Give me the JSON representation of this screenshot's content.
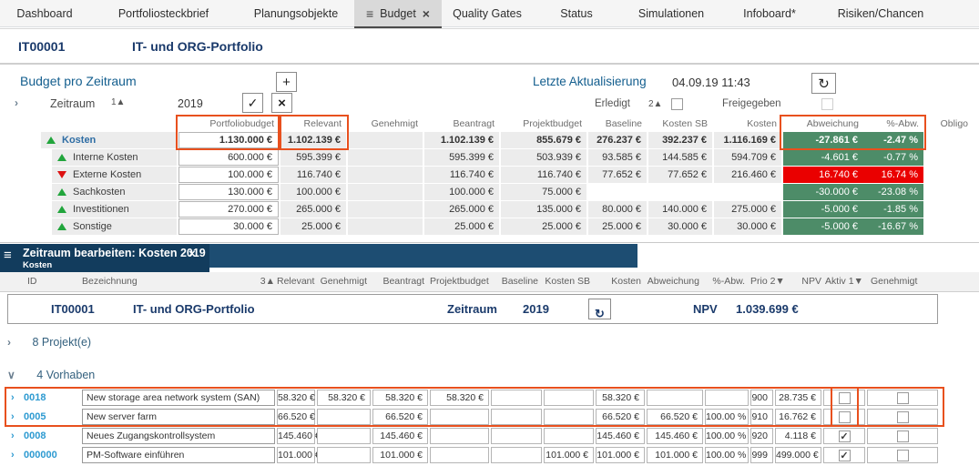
{
  "icons": {
    "menu": "≡",
    "close": "×",
    "add": "+",
    "confirm": "✓",
    "cancel": "×",
    "refresh": "↻",
    "chevron_right": "›",
    "chevron_down": "∨",
    "check": "✓"
  },
  "colors": {
    "accent_blue": "#135e8e",
    "navy": "#1a3a6b",
    "green_cell": "#4d8c68",
    "red_cell": "#ea0000",
    "annotation_red": "#e8501e",
    "link_blue": "#2d9ad1",
    "panel_dark": "#123c5d",
    "panel_mid": "#1d4d72",
    "trend_up_green": "#21a53c",
    "trend_down_red": "#dd1111"
  },
  "tabs": [
    {
      "label": "Dashboard",
      "active": false
    },
    {
      "label": "Portfoliosteckbrief",
      "active": false
    },
    {
      "label": "Planungsobjekte",
      "active": false
    },
    {
      "label": "Budget",
      "active": true
    },
    {
      "label": "Quality Gates",
      "active": false
    },
    {
      "label": "Status",
      "active": false
    },
    {
      "label": "Simulationen",
      "active": false
    },
    {
      "label": "Infoboard*",
      "active": false
    },
    {
      "label": "Risiken/Chancen",
      "active": false
    }
  ],
  "portfolio_header": {
    "id": "IT00001",
    "name": "IT- und ORG-Portfolio"
  },
  "budget_section": {
    "title": "Budget pro Zeitraum",
    "zeitraum_label": "Zeitraum",
    "zeitraum_sort": "1▲",
    "zeitraum_value": "2019",
    "last_update_label": "Letzte Aktualisierung",
    "last_update_value": "04.09.19 11:43",
    "erledigt_label": "Erledigt",
    "erledigt_sort": "2▲",
    "erledigt_checked": false,
    "freigegeben_label": "Freigegeben",
    "freigegeben_checked": false
  },
  "budget_table": {
    "columns": [
      "Portfoliobudget",
      "Relevant",
      "Genehmigt",
      "Beantragt",
      "Projektbudget",
      "Baseline",
      "Kosten SB",
      "Kosten",
      "Abweichung",
      "%-Abw.",
      "Obligo"
    ],
    "rows": [
      {
        "label": "Kosten",
        "trend": "up",
        "parent": true,
        "flag": "green",
        "portfoliobudget": "1.130.000 €",
        "relevant": "1.102.139 €",
        "genehmigt": "",
        "beantragt": "1.102.139 €",
        "projektbudget": "855.679 €",
        "baseline": "276.237 €",
        "kosten_sb": "392.237 €",
        "kosten": "1.116.169 €",
        "abweichung": "-27.861 €",
        "pct_abw": "-2.47 %",
        "obligo": null
      },
      {
        "label": "Interne Kosten",
        "trend": "up",
        "parent": false,
        "flag": "green",
        "portfoliobudget": "600.000 €",
        "relevant": "595.399 €",
        "genehmigt": "",
        "beantragt": "595.399 €",
        "projektbudget": "503.939 €",
        "baseline": "93.585 €",
        "kosten_sb": "144.585 €",
        "kosten": "594.709 €",
        "abweichung": "-4.601 €",
        "pct_abw": "-0.77 %",
        "obligo": null
      },
      {
        "label": "Externe Kosten",
        "trend": "down",
        "parent": false,
        "flag": "red",
        "portfoliobudget": "100.000 €",
        "relevant": "116.740 €",
        "genehmigt": "",
        "beantragt": "116.740 €",
        "projektbudget": "116.740 €",
        "baseline": "77.652 €",
        "kosten_sb": "77.652 €",
        "kosten": "216.460 €",
        "abweichung": "16.740 €",
        "pct_abw": "16.74 %",
        "obligo": null
      },
      {
        "label": "Sachkosten",
        "trend": "up",
        "parent": false,
        "flag": "green",
        "portfoliobudget": "130.000 €",
        "relevant": "100.000 €",
        "genehmigt": "",
        "beantragt": "100.000 €",
        "projektbudget": "75.000 €",
        "baseline": null,
        "kosten_sb": null,
        "kosten": null,
        "abweichung": "-30.000 €",
        "pct_abw": "-23.08 %",
        "obligo": null
      },
      {
        "label": "Investitionen",
        "trend": "up",
        "parent": false,
        "flag": "green",
        "portfoliobudget": "270.000 €",
        "relevant": "265.000 €",
        "genehmigt": "",
        "beantragt": "265.000 €",
        "projektbudget": "135.000 €",
        "baseline": "80.000 €",
        "kosten_sb": "140.000 €",
        "kosten": "275.000 €",
        "abweichung": "-5.000 €",
        "pct_abw": "-1.85 %",
        "obligo": null
      },
      {
        "label": "Sonstige",
        "trend": "up",
        "parent": false,
        "flag": "green",
        "portfoliobudget": "30.000 €",
        "relevant": "25.000 €",
        "genehmigt": "",
        "beantragt": "25.000 €",
        "projektbudget": "25.000 €",
        "baseline": "25.000 €",
        "kosten_sb": "30.000 €",
        "kosten": "30.000 €",
        "abweichung": "-5.000 €",
        "pct_abw": "-16.67 %",
        "obligo": null
      }
    ]
  },
  "edit_panel": {
    "title": "Zeitraum bearbeiten: Kosten 2019",
    "subtitle": "Kosten"
  },
  "detail_table": {
    "columns": {
      "id": "ID",
      "bezeichnung": "Bezeichnung",
      "bez_sort": "3▲",
      "relevant": "Relevant",
      "genehmigt": "Genehmigt",
      "beantragt": "Beantragt",
      "projektbudget": "Projektbudget",
      "baseline": "Baseline",
      "kosten_sb": "Kosten SB",
      "kosten": "Kosten",
      "abweichung": "Abweichung",
      "pct_abw": "%-Abw.",
      "prio": "Prio 2▼",
      "npv": "NPV",
      "aktiv": "Aktiv 1▼",
      "genehmigt_cb": "Genehmigt"
    },
    "summary": {
      "id": "IT00001",
      "name": "IT- und ORG-Portfolio",
      "zeitraum_label": "Zeitraum",
      "zeitraum_value": "2019",
      "npv_label": "NPV",
      "npv_value": "1.039.699 €"
    },
    "groups": [
      {
        "label": "8 Projekt(e)",
        "expanded": false
      },
      {
        "label": "4 Vorhaben",
        "expanded": true
      }
    ],
    "rows": [
      {
        "id": "0018",
        "name": "New storage area network system (SAN)",
        "relevant": "58.320 €",
        "genehmigt": "58.320 €",
        "beantragt": "58.320 €",
        "projektbudget": "58.320 €",
        "baseline": "",
        "kosten_sb": "",
        "kosten": "58.320 €",
        "abweichung": "",
        "pct_abw": "",
        "prio": "900",
        "npv": "28.735 €",
        "aktiv": false,
        "genehmigt_cb": false
      },
      {
        "id": "0005",
        "name": "New server farm",
        "relevant": "66.520 €",
        "genehmigt": "",
        "beantragt": "66.520 €",
        "projektbudget": "",
        "baseline": "",
        "kosten_sb": "",
        "kosten": "66.520 €",
        "abweichung": "66.520 €",
        "pct_abw": "100.00 %",
        "prio": "910",
        "npv": "16.762 €",
        "aktiv": false,
        "genehmigt_cb": false
      },
      {
        "id": "0008",
        "name": "Neues Zugangskontrollsystem",
        "relevant": "145.460 €",
        "genehmigt": "",
        "beantragt": "145.460 €",
        "projektbudget": "",
        "baseline": "",
        "kosten_sb": "",
        "kosten": "145.460 €",
        "abweichung": "145.460 €",
        "pct_abw": "100.00 %",
        "prio": "920",
        "npv": "4.118 €",
        "aktiv": true,
        "genehmigt_cb": false
      },
      {
        "id": "000000",
        "name": "PM-Software einführen",
        "relevant": "101.000 €",
        "genehmigt": "",
        "beantragt": "101.000 €",
        "projektbudget": "",
        "baseline": "",
        "kosten_sb": "101.000 €",
        "kosten": "101.000 €",
        "abweichung": "101.000 €",
        "pct_abw": "100.00 %",
        "prio": "999",
        "npv": "499.000 €",
        "aktiv": true,
        "genehmigt_cb": false
      }
    ]
  }
}
